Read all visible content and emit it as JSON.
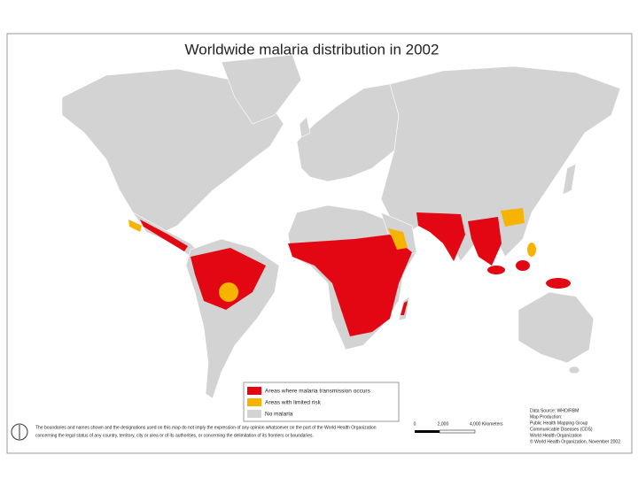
{
  "title": "Worldwide malaria distribution in 2002",
  "legend": [
    {
      "label": "Areas where malaria transmission occurs",
      "color": "#e30613"
    },
    {
      "label": "Areas with limited risk",
      "color": "#f6b400"
    },
    {
      "label": "No malaria",
      "color": "#d3d3d3"
    }
  ],
  "disclaimer": [
    "The boundaries and names shown and the designations used on this map do not imply the expression of any opinion whatsoever on the part of the World Health Organization",
    "concerning the legal status of any country, territory, city or area or of its authorities, or concerning the delimitation of its frontiers or boundaries."
  ],
  "scale_bar": [
    "0",
    "2,000",
    "4,000 Kilometers"
  ],
  "credits": [
    "Data Source: WHO/RBM",
    "Map Production:",
    "Public Health Mapping Group",
    "Communicable Diseases (CDS)",
    "World Health Organization",
    "© World Health Organization, November 2002"
  ]
}
